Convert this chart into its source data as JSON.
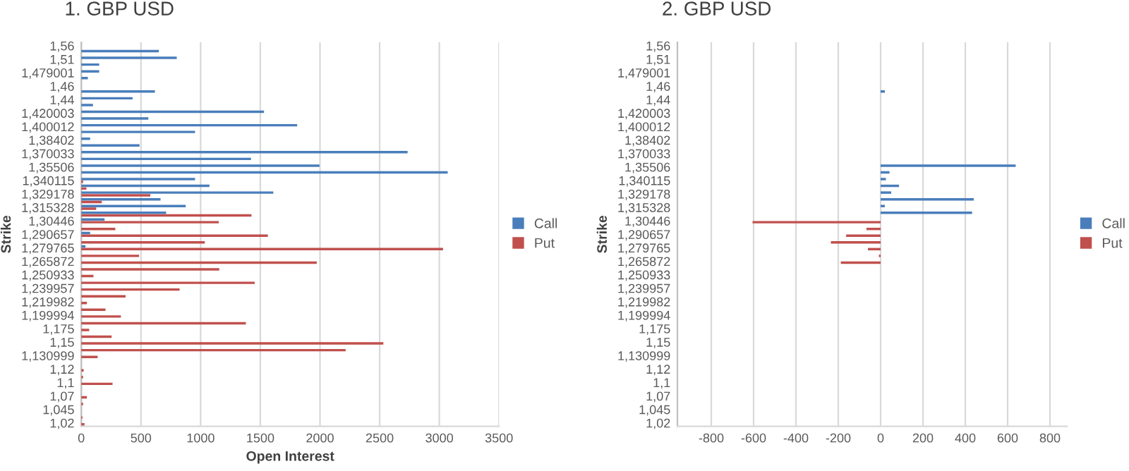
{
  "chart_data": [
    {
      "type": "bar",
      "orientation": "horizontal",
      "title": "1. GBP USD",
      "xlabel": "Open Interest",
      "ylabel": "Strike",
      "grid": "x",
      "legend": "right",
      "categories": [
        "1,56",
        null,
        "1,51",
        null,
        "1,479001",
        null,
        "1,46",
        null,
        "1,44",
        null,
        "1,420003",
        null,
        "1,400012",
        null,
        "1,38402",
        null,
        "1,370033",
        null,
        "1,35506",
        null,
        "1,340115",
        null,
        "1,329178",
        null,
        "1,315328",
        null,
        "1,30446",
        null,
        "1,290657",
        null,
        "1,279765",
        null,
        "1,265872",
        null,
        "1,250933",
        null,
        "1,239957",
        null,
        "1,219982",
        null,
        "1,199994",
        null,
        "1,175",
        null,
        "1,15",
        null,
        "1,130999",
        null,
        "1,12",
        null,
        "1,1",
        null,
        "1,07",
        null,
        "1,045",
        null,
        "1,02"
      ],
      "xlim": [
        0,
        3500
      ],
      "xticks": [
        0,
        500,
        1000,
        1500,
        2000,
        2500,
        3000,
        3500
      ],
      "series": [
        {
          "name": "Call",
          "color": "#4a7ebb",
          "values": [
            null,
            650,
            800,
            150,
            150,
            55,
            null,
            617,
            430,
            98,
            1531,
            562,
            1809,
            953,
            74,
            488,
            2734,
            1422,
            1996,
            3070,
            953,
            1074,
            1609,
            664,
            875,
            711,
            195,
            null,
            74,
            null,
            35,
            null,
            null,
            null,
            null,
            null,
            null,
            null,
            null,
            null,
            null,
            null,
            null,
            null,
            null,
            null,
            null,
            null,
            null,
            null,
            null,
            null,
            null,
            null,
            null,
            null,
            null
          ]
        },
        {
          "name": "Put",
          "color": "#c0504d",
          "values": [
            null,
            null,
            null,
            null,
            null,
            null,
            null,
            null,
            null,
            null,
            null,
            null,
            null,
            null,
            null,
            null,
            null,
            null,
            null,
            null,
            15,
            43,
            578,
            172,
            125,
            1426,
            1152,
            285,
            1563,
            1035,
            3031,
            484,
            1973,
            1156,
            102,
            1453,
            824,
            371,
            47,
            203,
            332,
            1379,
            66,
            254,
            2531,
            2215,
            137,
            null,
            20,
            15,
            262,
            null,
            47,
            15,
            null,
            10,
            27
          ]
        }
      ]
    },
    {
      "type": "bar",
      "orientation": "horizontal",
      "title": "2. GBP USD",
      "ylabel": "Strike",
      "grid": "x",
      "legend": "right",
      "categories": [
        "1,56",
        null,
        "1,51",
        null,
        "1,479001",
        null,
        "1,46",
        null,
        "1,44",
        null,
        "1,420003",
        null,
        "1,400012",
        null,
        "1,38402",
        null,
        "1,370033",
        null,
        "1,35506",
        null,
        "1,340115",
        null,
        "1,329178",
        null,
        "1,315328",
        null,
        "1,30446",
        null,
        "1,290657",
        null,
        "1,279765",
        null,
        "1,265872",
        null,
        "1,250933",
        null,
        "1,239957",
        null,
        "1,219982",
        null,
        "1,199994",
        null,
        "1,175",
        null,
        "1,15",
        null,
        "1,130999",
        null,
        "1,12",
        null,
        "1,1",
        null,
        "1,07",
        null,
        "1,045",
        null,
        "1,02"
      ],
      "xlim": [
        -960,
        880
      ],
      "xticks": [
        -800,
        -600,
        -400,
        -200,
        0,
        200,
        400,
        600,
        800
      ],
      "series": [
        {
          "name": "Call",
          "color": "#4a7ebb",
          "values": [
            null,
            null,
            null,
            null,
            null,
            null,
            null,
            20,
            null,
            null,
            null,
            null,
            null,
            null,
            null,
            null,
            null,
            null,
            638,
            42,
            25,
            87,
            50,
            440,
            20,
            432,
            null,
            null,
            null,
            null,
            null,
            null,
            null,
            null,
            null,
            null,
            null,
            null,
            null,
            null,
            null,
            null,
            null,
            null,
            null,
            null,
            null,
            null,
            null,
            null,
            null,
            null,
            null,
            null,
            null,
            null,
            null
          ]
        },
        {
          "name": "Put",
          "color": "#c0504d",
          "values": [
            null,
            null,
            null,
            null,
            null,
            null,
            null,
            null,
            null,
            null,
            null,
            null,
            null,
            null,
            null,
            null,
            null,
            null,
            null,
            null,
            null,
            null,
            null,
            null,
            null,
            null,
            -605,
            -67,
            -163,
            -235,
            -60,
            -8,
            -188,
            null,
            null,
            null,
            null,
            null,
            null,
            null,
            null,
            null,
            null,
            null,
            null,
            null,
            null,
            null,
            null,
            null,
            null,
            null,
            null,
            null,
            null,
            null,
            null
          ]
        }
      ]
    }
  ]
}
